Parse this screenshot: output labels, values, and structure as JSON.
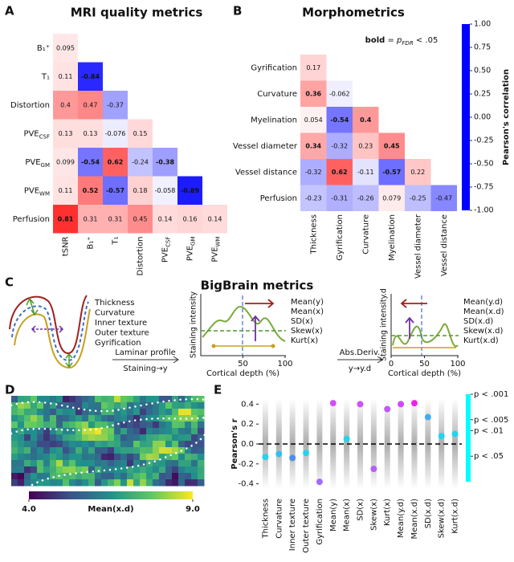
{
  "chart_data": [
    {
      "type": "heatmap",
      "panel_label": "A",
      "title": "MRI quality metrics",
      "rows": [
        "B₁⁺",
        "T₁",
        "Distortion",
        {
          "base": "PVE",
          "sub": "CSF"
        },
        {
          "base": "PVE",
          "sub": "GM"
        },
        {
          "base": "PVE",
          "sub": "WM"
        },
        "Perfusion"
      ],
      "columns": [
        "tSNR",
        "B₁⁺",
        "T₁",
        "Distortion",
        {
          "base": "PVE",
          "sub": "CSF"
        },
        {
          "base": "PVE",
          "sub": "GM"
        },
        {
          "base": "PVE",
          "sub": "WM"
        }
      ],
      "values": [
        [
          0.095
        ],
        [
          0.11,
          -0.84
        ],
        [
          0.4,
          0.47,
          -0.37
        ],
        [
          0.13,
          0.13,
          -0.076,
          0.15
        ],
        [
          0.099,
          -0.54,
          0.62,
          -0.24,
          -0.38
        ],
        [
          0.11,
          0.52,
          -0.57,
          0.18,
          -0.058,
          -0.89
        ],
        [
          0.81,
          0.31,
          0.31,
          0.45,
          0.14,
          0.16,
          0.14
        ]
      ],
      "bold": [
        [
          false
        ],
        [
          false,
          true
        ],
        [
          false,
          false,
          false
        ],
        [
          false,
          false,
          false,
          false
        ],
        [
          false,
          true,
          true,
          false,
          true
        ],
        [
          false,
          true,
          true,
          false,
          false,
          true
        ],
        [
          true,
          false,
          false,
          false,
          false,
          false,
          false
        ]
      ],
      "clim": [
        -1,
        1
      ],
      "colormap": [
        "#0000ff",
        "#ffffff",
        "#ff0000"
      ]
    },
    {
      "type": "heatmap",
      "panel_label": "B",
      "title": "Morphometrics",
      "rows": [
        "Gyrification",
        "Curvature",
        "Myelination",
        "Vessel diameter",
        "Vessel distance",
        "Perfusion"
      ],
      "columns": [
        "Thickness",
        "Gyrification",
        "Curvature",
        "Myelination",
        "Vessel diameter",
        "Vessel distance"
      ],
      "values": [
        [
          0.17
        ],
        [
          0.36,
          -0.062
        ],
        [
          0.054,
          -0.54,
          0.4
        ],
        [
          0.34,
          -0.32,
          0.23,
          0.45
        ],
        [
          -0.32,
          0.62,
          -0.11,
          -0.57,
          0.22
        ],
        [
          -0.23,
          -0.31,
          -0.26,
          0.079,
          -0.25,
          -0.47
        ]
      ],
      "bold": [
        [
          false
        ],
        [
          true,
          false
        ],
        [
          false,
          true,
          true
        ],
        [
          true,
          false,
          false,
          true
        ],
        [
          false,
          true,
          false,
          true,
          false
        ],
        [
          false,
          false,
          false,
          false,
          false,
          false
        ]
      ],
      "clim": [
        -1,
        1
      ],
      "colormap": [
        "#0000ff",
        "#ffffff",
        "#ff0000"
      ],
      "annotation": {
        "bold": "bold",
        "eq": " = ",
        "p": "p",
        "sub": "FDR",
        "tail": " < .05"
      },
      "colorbar": {
        "label": "Pearson's correlation",
        "ylim": [
          -1,
          1
        ],
        "yticks": [
          {
            "value": -1,
            "label": "-1.00"
          },
          -0.75,
          {
            "value": -0.5,
            "label": "-0.50"
          },
          -0.25,
          {
            "value": 0,
            "label": "0.00"
          },
          0.25,
          {
            "value": 0.5,
            "label": "0.50"
          },
          0.75,
          {
            "value": 1,
            "label": "1.00"
          }
        ]
      }
    },
    {
      "type": "schematic",
      "panel_label": "C",
      "title": "BigBrain metrics",
      "legend": [
        {
          "name": "Thickness",
          "color": "#4f9a2a"
        },
        {
          "name": "Curvature",
          "color": "#3b6fc4"
        },
        {
          "name": "Inner texture",
          "color": "#c8a020"
        },
        {
          "name": "Outer texture",
          "color": "#a02020"
        },
        {
          "name": "Gyrification",
          "color": "#7030a0"
        }
      ],
      "step1": {
        "label": "Laminar profile",
        "sublabel": "Staining→y"
      },
      "plot1": {
        "ylabel": "Staining intensity",
        "xlabel": "Cortical depth (%)",
        "xlim": [
          0,
          100
        ],
        "xticks": [
          50,
          100
        ],
        "legend": [
          {
            "name": "Mean(y)",
            "color": "#4f9a2a"
          },
          {
            "name": "Mean(x)",
            "color": "#3b6fc4"
          },
          {
            "name": "SD(x)",
            "color": "#c8a020"
          },
          {
            "name": "Skew(x)",
            "color": "#a02020"
          },
          {
            "name": "Kurt(x)",
            "color": "#7030a0"
          }
        ]
      },
      "step2": {
        "label": "Abs.Deriv.",
        "sublabel": "y→y.d"
      },
      "plot2": {
        "ylabel": "Staining intensity.d",
        "xlabel": "Cortical depth (%)",
        "xlim": [
          0,
          100
        ],
        "xticks": [
          0,
          50,
          100
        ],
        "legend": [
          {
            "name": "Mean(y.d)",
            "color": "#4f9a2a"
          },
          {
            "name": "Mean(x.d)",
            "color": "#3b6fc4"
          },
          {
            "name": "SD(x.d)",
            "color": "#c8a020"
          },
          {
            "name": "Skew(x.d)",
            "color": "#a02020"
          },
          {
            "name": "Kurt(x.d)",
            "color": "#7030a0"
          }
        ]
      }
    },
    {
      "type": "image",
      "panel_label": "D",
      "colorbar": {
        "label": "Mean(x.d)",
        "lim": [
          4,
          9
        ],
        "ticks": [
          {
            "value": 4,
            "label": "4.0"
          },
          {
            "value": 9,
            "label": "9.0"
          }
        ],
        "colormap": [
          "#440154",
          "#3b528b",
          "#21918c",
          "#5ec962",
          "#fde725"
        ]
      }
    },
    {
      "type": "strip",
      "panel_label": "E",
      "ylabel": "Pearson's r",
      "categories": [
        "Thickness",
        "Curvature",
        "Inner texture",
        "Outer texture",
        "Gyrification",
        "Mean(y)",
        "Mean(x)",
        "SD(x)",
        "Skew(x)",
        "Kurt(x)",
        "Mean(y.d)",
        "Mean(x.d)",
        "SD(x.d)",
        "Skew(x.d)",
        "Kurt(x.d)"
      ],
      "values": [
        -0.13,
        -0.1,
        -0.14,
        -0.09,
        -0.38,
        0.41,
        0.05,
        0.4,
        -0.25,
        0.35,
        0.4,
        0.41,
        0.27,
        0.08,
        0.1
      ],
      "point_colors": [
        "#22d4f0",
        "#30c0f2",
        "#4a8ef2",
        "#22d4f0",
        "#a26cf8",
        "#d050f8",
        "#22d4f0",
        "#d050f8",
        "#b060f8",
        "#c058f8",
        "#d048f6",
        "#f020f0",
        "#40aef2",
        "#22d4f0",
        "#22d4f0"
      ],
      "ylim": [
        -0.5,
        0.5
      ],
      "yticks": [
        -0.4,
        -0.2,
        {
          "value": 0,
          "label": "0.0"
        },
        0.2,
        0.4
      ],
      "colorbar": {
        "lim": [
          0.001,
          0.25
        ],
        "log": true,
        "colors": [
          "#ff00ff",
          "#00ffff"
        ],
        "ticks": [
          {
            "value": 0.001,
            "label": "p < .001"
          },
          {
            "value": 0.005,
            "label": "p < .005"
          },
          {
            "value": 0.01,
            "label": "p < .01"
          },
          {
            "value": 0.05,
            "label": "p < .05"
          }
        ]
      }
    }
  ]
}
